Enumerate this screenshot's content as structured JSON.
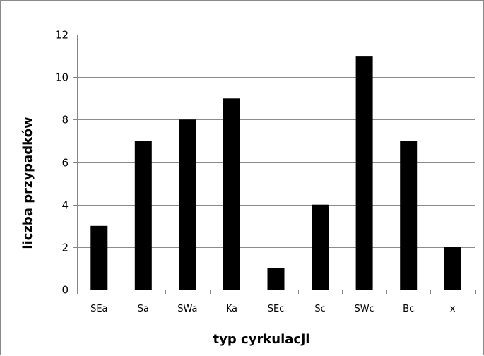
{
  "chart_data": {
    "type": "bar",
    "title": "",
    "xlabel": "typ cyrkulacji",
    "ylabel": "liczba przypadków",
    "categories": [
      "SEa",
      "Sa",
      "SWa",
      "Ka",
      "SEc",
      "Sc",
      "SWc",
      "Bc",
      "x"
    ],
    "values": [
      3,
      7,
      8,
      9,
      1,
      4,
      11,
      7,
      2
    ],
    "ylim": [
      0,
      12
    ],
    "yticks": [
      "0",
      "2",
      "4",
      "6",
      "8",
      "10",
      "12"
    ],
    "grid": true,
    "legend": "none",
    "colors": {
      "bar": "#000000",
      "grid": "#8c8c8c",
      "axis": "#868686"
    }
  }
}
